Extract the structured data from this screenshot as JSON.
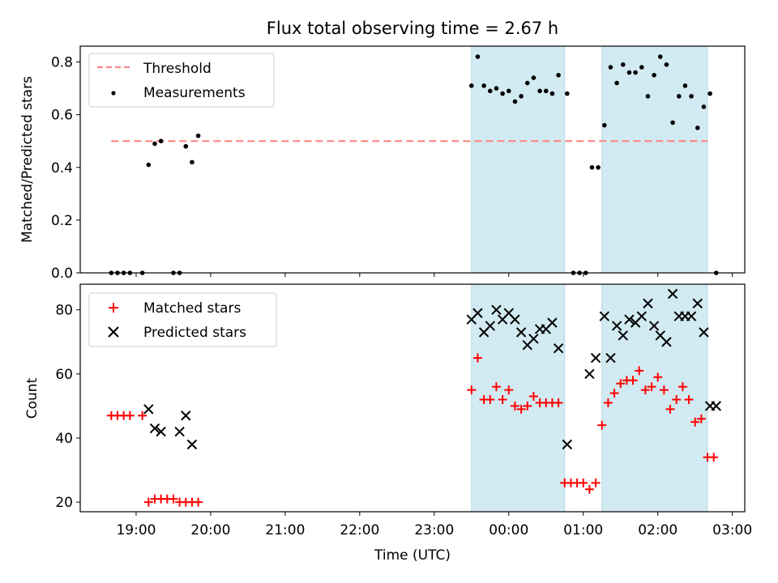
{
  "figure": {
    "title": "Flux total observing time = 2.67 h",
    "xlabel": "Time (UTC)"
  },
  "colors": {
    "threshold": "#ff7f7f",
    "measurements": "#000000",
    "matched": "#ff0000",
    "predicted": "#000000",
    "shade": "#add8e6"
  },
  "chart_data": [
    {
      "type": "scatter",
      "ylabel": "Matched/Predicted stars",
      "ylim": [
        0,
        0.86
      ],
      "yticks": [
        0.0,
        0.2,
        0.4,
        0.6,
        0.8
      ],
      "ytick_labels": [
        "0.0",
        "0.2",
        "0.4",
        "0.6",
        "0.8"
      ],
      "legend": {
        "placement": "upper left",
        "entries": [
          "Threshold",
          "Measurements"
        ]
      },
      "shaded_intervals": [
        [
          "23:30",
          "00:45"
        ],
        [
          "01:15",
          "02:40"
        ]
      ],
      "threshold": {
        "name": "Threshold",
        "x": [
          "18:40",
          "02:40"
        ],
        "y": 0.5
      },
      "series": [
        {
          "name": "Measurements",
          "x": [
            "18:40",
            "18:45",
            "18:50",
            "18:55",
            "19:05",
            "19:10",
            "19:15",
            "19:20",
            "19:30",
            "19:35",
            "19:40",
            "19:45",
            "19:50",
            "23:30",
            "23:35",
            "23:40",
            "23:45",
            "23:50",
            "23:55",
            "00:00",
            "00:05",
            "00:10",
            "00:15",
            "00:20",
            "00:25",
            "00:30",
            "00:35",
            "00:40",
            "00:47",
            "00:52",
            "00:57",
            "01:02",
            "01:07",
            "01:12",
            "01:17",
            "01:22",
            "01:27",
            "01:32",
            "01:37",
            "01:42",
            "01:47",
            "01:52",
            "01:57",
            "02:02",
            "02:07",
            "02:12",
            "02:17",
            "02:22",
            "02:27",
            "02:32",
            "02:37",
            "02:42",
            "02:47"
          ],
          "y": [
            0,
            0,
            0,
            0,
            0,
            0.41,
            0.49,
            0.5,
            0,
            0,
            0.48,
            0.42,
            0.52,
            0.71,
            0.82,
            0.71,
            0.69,
            0.7,
            0.68,
            0.69,
            0.65,
            0.67,
            0.72,
            0.74,
            0.69,
            0.69,
            0.68,
            0.75,
            0.68,
            0,
            0,
            0,
            0.4,
            0.4,
            0.56,
            0.78,
            0.72,
            0.79,
            0.76,
            0.76,
            0.78,
            0.67,
            0.75,
            0.82,
            0.79,
            0.57,
            0.67,
            0.71,
            0.67,
            0.55,
            0.63,
            0.68,
            0
          ]
        }
      ]
    },
    {
      "type": "scatter",
      "ylabel": "Count",
      "ylim": [
        17,
        88
      ],
      "yticks": [
        20,
        40,
        60,
        80
      ],
      "ytick_labels": [
        "20",
        "40",
        "60",
        "80"
      ],
      "xlim": [
        "18:15",
        "03:10"
      ],
      "xticks": [
        "19:00",
        "20:00",
        "21:00",
        "22:00",
        "23:00",
        "00:00",
        "01:00",
        "02:00",
        "03:00"
      ],
      "xtick_labels": [
        "19:00",
        "20:00",
        "21:00",
        "22:00",
        "23:00",
        "00:00",
        "01:00",
        "02:00",
        "03:00"
      ],
      "legend": {
        "placement": "upper left",
        "entries": [
          "Matched stars",
          "Predicted stars"
        ]
      },
      "shaded_intervals": [
        [
          "23:30",
          "00:45"
        ],
        [
          "01:15",
          "02:40"
        ]
      ],
      "series": [
        {
          "name": "Matched stars",
          "marker": "+",
          "x": [
            "18:40",
            "18:45",
            "18:50",
            "18:55",
            "19:05",
            "19:10",
            "19:15",
            "19:20",
            "19:25",
            "19:30",
            "19:35",
            "19:40",
            "19:45",
            "19:50",
            "23:30",
            "23:35",
            "23:40",
            "23:45",
            "23:50",
            "23:55",
            "00:00",
            "00:05",
            "00:10",
            "00:15",
            "00:20",
            "00:25",
            "00:30",
            "00:35",
            "00:40",
            "00:45",
            "00:50",
            "00:55",
            "01:00",
            "01:05",
            "01:10",
            "01:15",
            "01:20",
            "01:25",
            "01:30",
            "01:35",
            "01:40",
            "01:45",
            "01:50",
            "01:55",
            "02:00",
            "02:05",
            "02:10",
            "02:15",
            "02:20",
            "02:25",
            "02:30",
            "02:35",
            "02:40",
            "02:45"
          ],
          "y": [
            47,
            47,
            47,
            47,
            47,
            20,
            21,
            21,
            21,
            21,
            20,
            20,
            20,
            20,
            55,
            65,
            52,
            52,
            56,
            52,
            55,
            50,
            49,
            50,
            53,
            51,
            51,
            51,
            51,
            26,
            26,
            26,
            26,
            24,
            26,
            44,
            51,
            54,
            57,
            58,
            58,
            61,
            55,
            56,
            59,
            55,
            49,
            52,
            56,
            52,
            45,
            46,
            34,
            34
          ]
        },
        {
          "name": "Predicted stars",
          "marker": "x",
          "x": [
            "19:10",
            "19:15",
            "19:20",
            "19:35",
            "19:40",
            "19:45",
            "23:30",
            "23:35",
            "23:40",
            "23:45",
            "23:50",
            "23:55",
            "00:00",
            "00:05",
            "00:10",
            "00:15",
            "00:20",
            "00:25",
            "00:30",
            "00:35",
            "00:40",
            "00:47",
            "01:05",
            "01:10",
            "01:17",
            "01:22",
            "01:27",
            "01:32",
            "01:37",
            "01:42",
            "01:47",
            "01:52",
            "01:57",
            "02:02",
            "02:07",
            "02:12",
            "02:17",
            "02:22",
            "02:27",
            "02:32",
            "02:37",
            "02:42",
            "02:47"
          ],
          "y": [
            49,
            43,
            42,
            42,
            47,
            38,
            77,
            79,
            73,
            75,
            80,
            77,
            79,
            77,
            73,
            69,
            71,
            74,
            74,
            76,
            68,
            38,
            60,
            65,
            78,
            65,
            75,
            72,
            77,
            76,
            78,
            82,
            75,
            72,
            70,
            85,
            78,
            78,
            78,
            82,
            73,
            50,
            50
          ]
        }
      ]
    }
  ]
}
